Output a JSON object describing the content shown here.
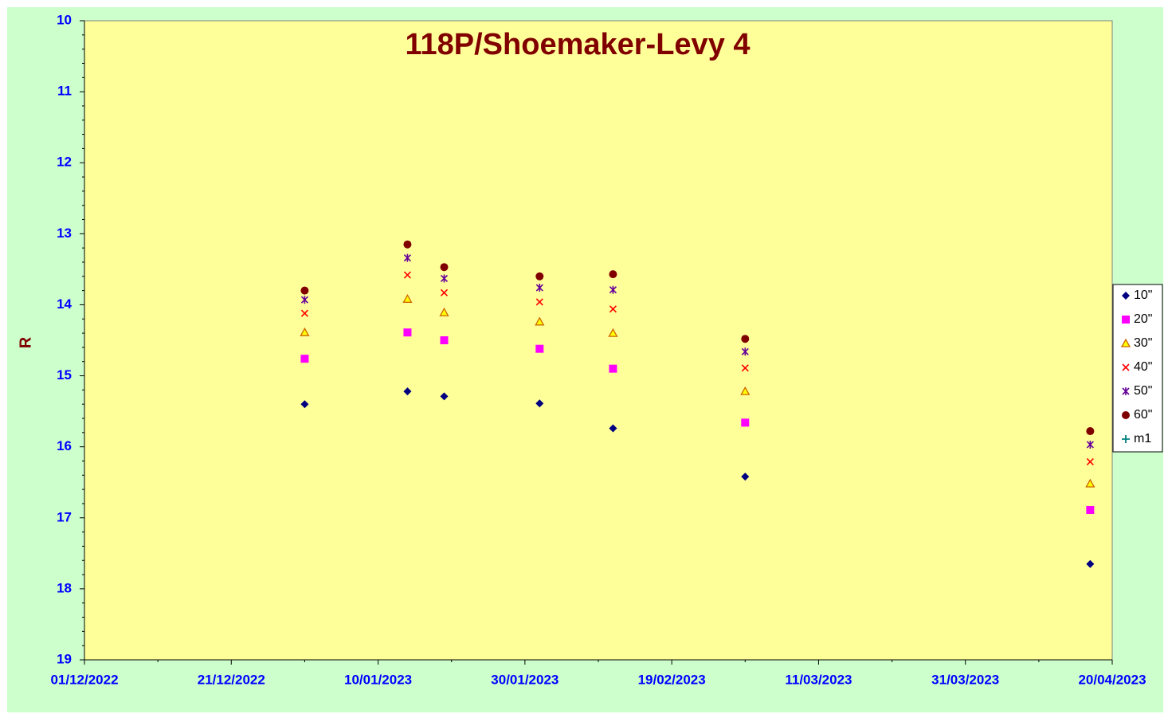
{
  "chart_data": {
    "type": "scatter",
    "title": "118P/Shoemaker-Levy 4",
    "y_label": "R",
    "x": [
      "2022-12-31",
      "2023-01-14",
      "2023-01-19",
      "2023-02-01",
      "2023-02-11",
      "2023-03-01",
      "2023-04-17"
    ],
    "series": [
      {
        "name": "10\"",
        "color": "#000080",
        "marker": "diamond",
        "values": [
          15.4,
          15.22,
          15.29,
          15.39,
          15.74,
          16.42,
          17.65
        ]
      },
      {
        "name": "20\"",
        "color": "#ff00ff",
        "marker": "square",
        "values": [
          14.76,
          14.39,
          14.5,
          14.62,
          14.9,
          15.66,
          16.89
        ]
      },
      {
        "name": "30\"",
        "color": "#ffff00",
        "marker": "triangle",
        "values": [
          14.39,
          13.92,
          14.11,
          14.24,
          14.4,
          15.22,
          16.52
        ]
      },
      {
        "name": "40\"",
        "color": "#ff0000",
        "marker": "x",
        "values": [
          14.12,
          13.58,
          13.83,
          13.96,
          14.06,
          14.89,
          16.21
        ]
      },
      {
        "name": "50\"",
        "color": "#660099",
        "marker": "star",
        "values": [
          13.93,
          13.34,
          13.63,
          13.76,
          13.79,
          14.66,
          15.97
        ]
      },
      {
        "name": "60\"",
        "color": "#800000",
        "marker": "circle",
        "values": [
          13.8,
          13.15,
          13.47,
          13.6,
          13.57,
          14.48,
          15.78
        ]
      },
      {
        "name": "m1",
        "color": "#008080",
        "marker": "plus",
        "values": [
          null,
          null,
          null,
          null,
          null,
          null,
          null
        ]
      }
    ],
    "xlim": [
      "2022-12-01",
      "2023-04-20"
    ],
    "xticks": [
      {
        "value": "2022-12-01",
        "label": "01/12/2022"
      },
      {
        "value": "2022-12-21",
        "label": "21/12/2022"
      },
      {
        "value": "2023-01-10",
        "label": "10/01/2023"
      },
      {
        "value": "2023-01-30",
        "label": "30/01/2023"
      },
      {
        "value": "2023-02-19",
        "label": "19/02/2023"
      },
      {
        "value": "2023-03-11",
        "label": "11/03/2023"
      },
      {
        "value": "2023-03-31",
        "label": "31/03/2023"
      },
      {
        "value": "2023-04-20",
        "label": "20/04/2023"
      }
    ],
    "ylim": [
      10,
      19
    ],
    "y_inverted": true,
    "yticks": [
      10,
      11,
      12,
      13,
      14,
      15,
      16,
      17,
      18,
      19
    ],
    "legend": "right"
  }
}
